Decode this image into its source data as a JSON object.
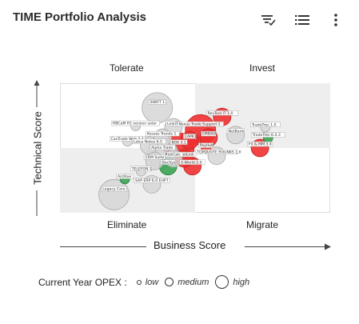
{
  "header": {
    "title": "TIME Portfolio Analysis",
    "filter_icon": "filter-check-icon",
    "list_icon": "list-icon",
    "more_icon": "more-vertical-icon"
  },
  "quadrants": {
    "top_left": "Tolerate",
    "top_right": "Invest",
    "bottom_left": "Eliminate",
    "bottom_right": "Migrate"
  },
  "axes": {
    "y_label": "Technical Score",
    "x_label": "Business Score"
  },
  "legend": {
    "title": "Current Year OPEX :",
    "items": [
      "low",
      "medium",
      "high"
    ]
  },
  "colors": {
    "gray": "#d6d6d6",
    "red": "#ef3030",
    "green": "#3aa352",
    "quadrant_bg": "#eeeeee"
  },
  "chart_data": {
    "type": "scatter",
    "xlim": [
      0,
      100
    ],
    "ylim": [
      0,
      100
    ],
    "grid": false,
    "points": [
      {
        "label": "SWIFT 1",
        "x": 36,
        "y": 81,
        "size": 3,
        "status": "gray"
      },
      {
        "label": "RBCaM R1 version solar",
        "x": 28,
        "y": 67,
        "size": 1,
        "status": "gray"
      },
      {
        "label": "LinkIT",
        "x": 42,
        "y": 66,
        "size": 2,
        "status": "gray"
      },
      {
        "label": "Nexus Trade Support 2",
        "x": 52,
        "y": 64,
        "size": 3,
        "status": "red"
      },
      {
        "label": "RevTool IT 1.0",
        "x": 60,
        "y": 74,
        "size": 2,
        "status": "red"
      },
      {
        "label": "Kesses Trends 1",
        "x": 38,
        "y": 58,
        "size": 2,
        "status": "gray"
      },
      {
        "label": "CasTrade Web 2.1",
        "x": 25,
        "y": 55,
        "size": 1,
        "status": "gray"
      },
      {
        "label": "ORBAVI",
        "x": 55,
        "y": 58,
        "size": 2,
        "status": "red"
      },
      {
        "label": "CAPK1",
        "x": 48,
        "y": 56,
        "size": 2,
        "status": "red"
      },
      {
        "label": "Lotus Notes 6.5",
        "x": 33,
        "y": 52,
        "size": 2,
        "status": "gray"
      },
      {
        "label": "BOX 3.1",
        "x": 44,
        "y": 50,
        "size": 3,
        "status": "red"
      },
      {
        "label": "TradeTrec 1.0",
        "x": 76,
        "y": 66,
        "size": 1,
        "status": "gray"
      },
      {
        "label": "TradeTrec 6.0.3",
        "x": 77,
        "y": 58,
        "size": 1,
        "status": "green"
      },
      {
        "label": "FX & MM 3.4",
        "x": 74,
        "y": 50,
        "size": 2,
        "status": "red"
      },
      {
        "label": "TOPQUOTE ROUNKS 1.0",
        "x": 58,
        "y": 44,
        "size": 2,
        "status": "gray"
      },
      {
        "label": "E-World 2.0",
        "x": 49,
        "y": 36,
        "size": 2,
        "status": "red"
      },
      {
        "label": "TELEFON 1",
        "x": 30,
        "y": 32,
        "size": 1,
        "status": "gray"
      },
      {
        "label": "SAP ERP 6.0 EHP7",
        "x": 34,
        "y": 22,
        "size": 2,
        "status": "gray"
      },
      {
        "label": "Alpha Trade",
        "x": 38,
        "y": 46,
        "size": 3,
        "status": "gray"
      },
      {
        "label": "MarketLink",
        "x": 46,
        "y": 42,
        "size": 2,
        "status": "red"
      },
      {
        "label": "DocSys",
        "x": 40,
        "y": 36,
        "size": 2,
        "status": "green"
      },
      {
        "label": "PayHub",
        "x": 54,
        "y": 50,
        "size": 1,
        "status": "red"
      },
      {
        "label": "Archive",
        "x": 24,
        "y": 26,
        "size": 1,
        "status": "green"
      },
      {
        "label": "Legacy Core",
        "x": 20,
        "y": 14,
        "size": 3,
        "status": "gray"
      },
      {
        "label": "NetBank",
        "x": 65,
        "y": 60,
        "size": 2,
        "status": "gray"
      },
      {
        "label": "RiskCalc",
        "x": 42,
        "y": 42,
        "size": 2,
        "status": "gray"
      },
      {
        "label": "CRM Suite",
        "x": 35,
        "y": 40,
        "size": 2,
        "status": "gray"
      }
    ]
  }
}
